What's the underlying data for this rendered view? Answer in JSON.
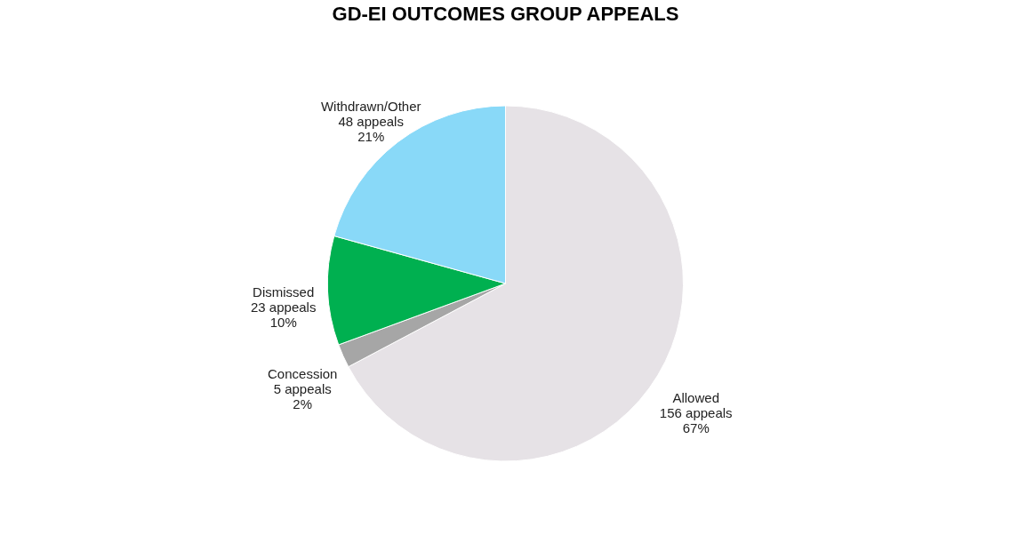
{
  "chart_data": {
    "type": "pie",
    "title": "GD-EI OUTCOMES  GROUP APPEALS",
    "categories": [
      "Allowed",
      "Concession",
      "Dismissed",
      "Withdrawn/Other"
    ],
    "values": [
      156,
      5,
      23,
      48
    ],
    "value_labels": [
      "156 appeals\n67%",
      "5 appeals\n2%",
      "23 appeals\n10%",
      "48 appeals\n21%"
    ],
    "colors": [
      "#e6e2e6",
      "#a6a6a6",
      "#00b050",
      "#89d9f8"
    ],
    "legend": false
  }
}
